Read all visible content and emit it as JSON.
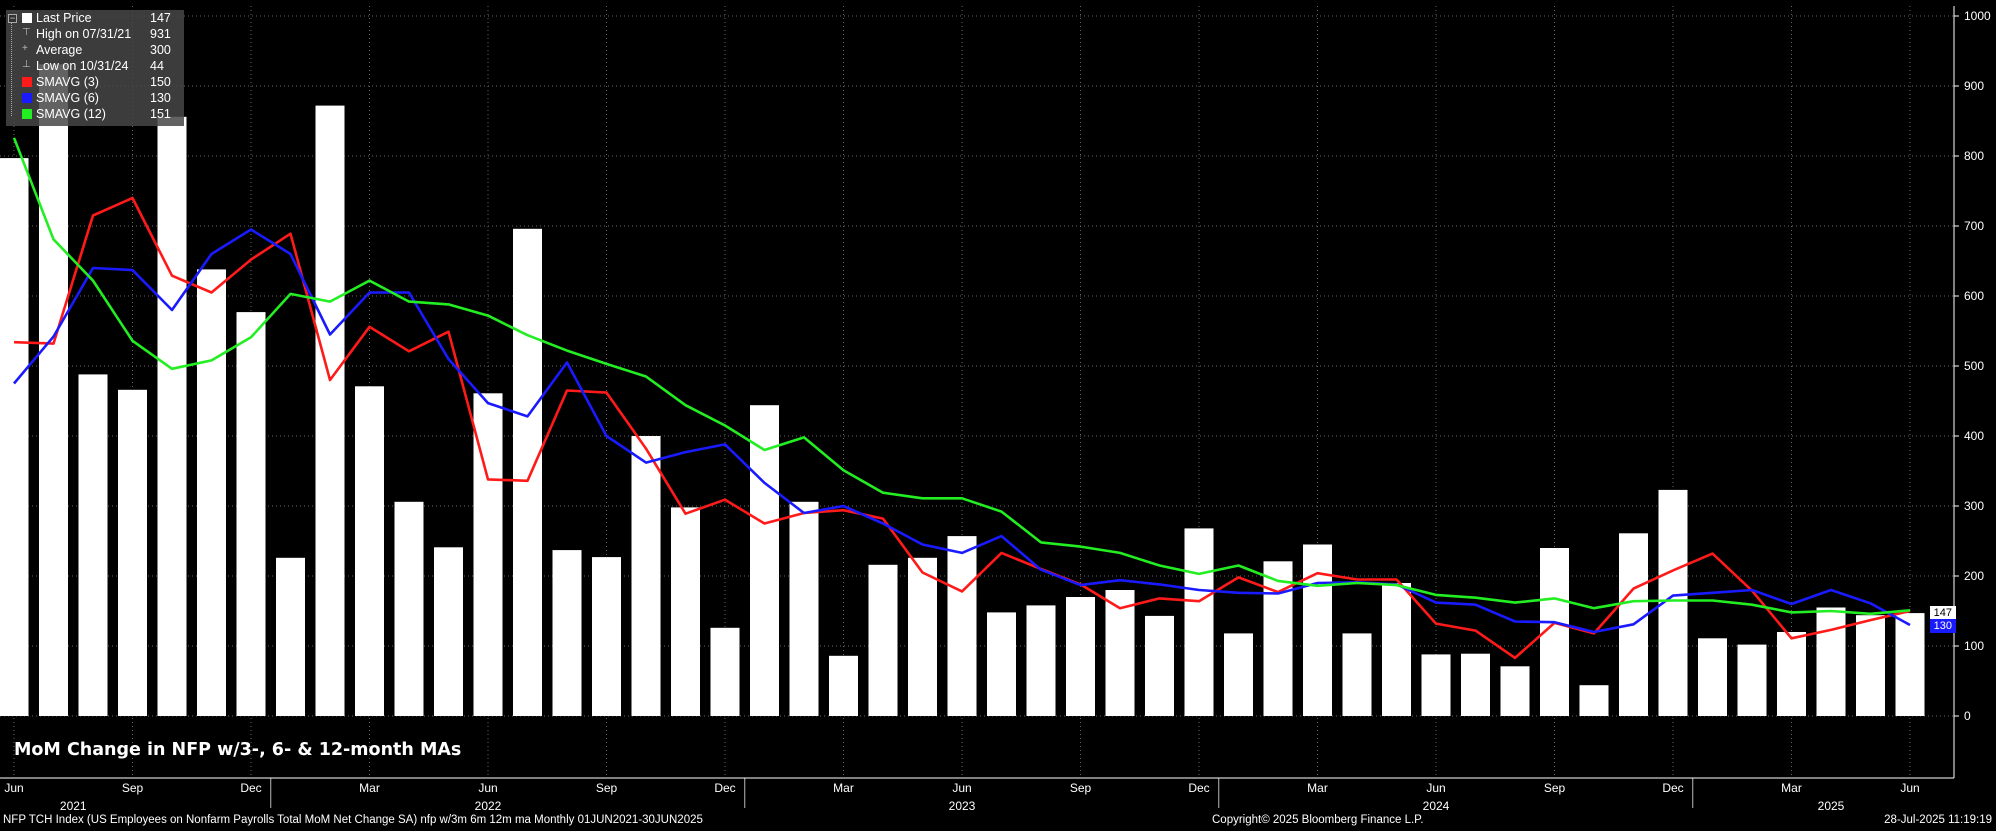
{
  "chart_data": {
    "type": "bar",
    "title": "MoM Change in NFP w/3-, 6- & 12-month MAs",
    "x_month_labels": [
      "Jun",
      "Sep",
      "Dec",
      "Mar",
      "Jun",
      "Sep",
      "Dec",
      "Mar",
      "Jun",
      "Sep",
      "Dec",
      "Mar",
      "Jun",
      "Sep",
      "Dec",
      "Mar",
      "Jun"
    ],
    "x_year_labels": [
      "2021",
      "2022",
      "2023",
      "2024",
      "2025"
    ],
    "y_ticks": [
      0,
      100,
      200,
      300,
      400,
      500,
      600,
      700,
      800,
      900,
      1000
    ],
    "ylim": [
      -90,
      1005
    ],
    "months": [
      "Jun 2021",
      "Jul 2021",
      "Aug 2021",
      "Sep 2021",
      "Oct 2021",
      "Nov 2021",
      "Dec 2021",
      "Jan 2022",
      "Feb 2022",
      "Mar 2022",
      "Apr 2022",
      "May 2022",
      "Jun 2022",
      "Jul 2022",
      "Aug 2022",
      "Sep 2022",
      "Oct 2022",
      "Nov 2022",
      "Dec 2022",
      "Jan 2023",
      "Feb 2023",
      "Mar 2023",
      "Apr 2023",
      "May 2023",
      "Jun 2023",
      "Jul 2023",
      "Aug 2023",
      "Sep 2023",
      "Oct 2023",
      "Nov 2023",
      "Dec 2023",
      "Jan 2024",
      "Feb 2024",
      "Mar 2024",
      "Apr 2024",
      "May 2024",
      "Jun 2024",
      "Jul 2024",
      "Aug 2024",
      "Sep 2024",
      "Oct 2024",
      "Nov 2024",
      "Dec 2024",
      "Jan 2025",
      "Feb 2025",
      "Mar 2025",
      "Apr 2025",
      "May 2025",
      "Jun 2025"
    ],
    "series": [
      {
        "name": "Last Price",
        "type": "bar",
        "color": "#ffffff",
        "values": [
          797,
          931,
          488,
          466,
          856,
          638,
          577,
          226,
          872,
          471,
          306,
          241,
          461,
          696,
          237,
          227,
          400,
          298,
          126,
          444,
          306,
          86,
          216,
          226,
          257,
          148,
          158,
          170,
          180,
          143,
          268,
          118,
          221,
          245,
          118,
          190,
          88,
          89,
          71,
          240,
          44,
          261,
          323,
          111,
          102,
          120,
          155,
          144,
          147
        ]
      },
      {
        "name": "SMAVG (3)",
        "type": "line",
        "color": "#ff1a1a",
        "values": [
          534,
          532,
          715,
          740,
          629,
          605,
          652,
          689,
          480,
          556,
          521,
          549,
          338,
          336,
          465,
          462,
          382,
          289,
          309,
          275,
          290,
          294,
          282,
          205,
          178,
          233,
          210,
          188,
          154,
          168,
          164,
          198,
          177,
          204,
          195,
          195,
          132,
          122,
          83,
          133,
          118,
          182,
          208,
          232,
          179,
          111,
          123,
          137,
          150
        ]
      },
      {
        "name": "SMAVG (6)",
        "type": "line",
        "color": "#1a1aff",
        "values": [
          475,
          542,
          640,
          637,
          580,
          660,
          695,
          660,
          545,
          605,
          605,
          510,
          447,
          428,
          505,
          400,
          362,
          377,
          388,
          333,
          290,
          300,
          275,
          245,
          233,
          257,
          209,
          187,
          194,
          188,
          180,
          176,
          175,
          190,
          191,
          188,
          162,
          159,
          135,
          134,
          120,
          131,
          172,
          176,
          180,
          160,
          180,
          161,
          130
        ]
      },
      {
        "name": "SMAVG (12)",
        "type": "line",
        "color": "#22ee22",
        "values": [
          826,
          681,
          622,
          536,
          496,
          508,
          541,
          603,
          592,
          622,
          592,
          588,
          572,
          544,
          522,
          503,
          485,
          444,
          415,
          380,
          398,
          351,
          319,
          311,
          311,
          292,
          248,
          242,
          233,
          215,
          203,
          215,
          193,
          186,
          190,
          187,
          173,
          169,
          162,
          168,
          154,
          164,
          165,
          165,
          159,
          148,
          150,
          146,
          151
        ]
      }
    ],
    "legend": [
      {
        "label": "Last Price",
        "value": "147",
        "symbol": "square",
        "color": "#ffffff"
      },
      {
        "label": "High on 07/31/21",
        "value": "931",
        "symbol": "high",
        "color": "#aaaaaa"
      },
      {
        "label": "Average",
        "value": "300",
        "symbol": "avg",
        "color": "#aaaaaa"
      },
      {
        "label": "Low on 10/31/24",
        "value": "44",
        "symbol": "low",
        "color": "#aaaaaa"
      },
      {
        "label": "SMAVG (3)",
        "value": "150",
        "symbol": "square",
        "color": "#ff1a1a"
      },
      {
        "label": "SMAVG (6)",
        "value": "130",
        "symbol": "square",
        "color": "#1a1aff"
      },
      {
        "label": "SMAVG (12)",
        "value": "151",
        "symbol": "square",
        "color": "#22ee22"
      }
    ],
    "last_value_tags": [
      {
        "value": "147",
        "bg": "#ffffff",
        "color": "#000000"
      },
      {
        "value": "130",
        "bg": "#1a1aff",
        "color": "#ffffff"
      }
    ],
    "grid": true,
    "legend_placement": "top-left"
  },
  "footer": {
    "left": "NFP TCH Index (US Employees on Nonfarm Payrolls Total MoM Net Change SA) nfp w/3m 6m 12m ma  Monthly 01JUN2021-30JUN2025",
    "center": "Copyright© 2025 Bloomberg Finance L.P.",
    "right": "28-Jul-2025 11:19:19"
  }
}
